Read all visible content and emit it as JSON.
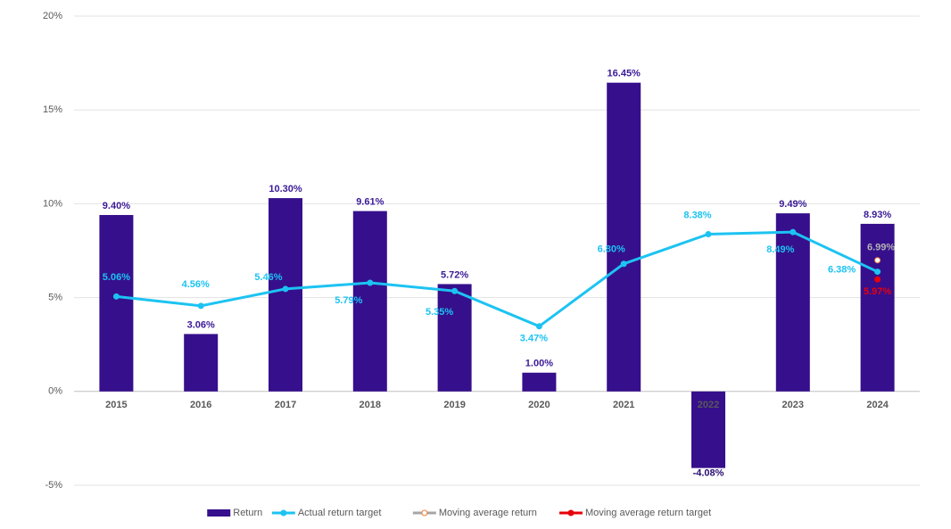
{
  "chart_data": {
    "type": "bar",
    "categories": [
      "2015",
      "2016",
      "2017",
      "2018",
      "2019",
      "2020",
      "2021",
      "2022",
      "2023",
      "2024"
    ],
    "series": [
      {
        "name": "Return",
        "type": "bar",
        "color": "#360f8c",
        "values": [
          9.4,
          3.06,
          10.3,
          9.61,
          5.72,
          1.0,
          16.45,
          -4.08,
          9.49,
          8.93
        ],
        "value_labels": [
          "9.40%",
          "3.06%",
          "10.30%",
          "9.61%",
          "5.72%",
          "1.00%",
          "16.45%",
          "-4.08%",
          "9.49%",
          "8.93%"
        ]
      },
      {
        "name": "Actual return target",
        "type": "line",
        "color": "#1cc3f2",
        "values": [
          5.06,
          4.56,
          5.46,
          5.79,
          5.35,
          3.47,
          6.8,
          8.38,
          8.49,
          6.38
        ],
        "value_labels": [
          "5.06%",
          "4.56%",
          "5.46%",
          "5.79%",
          "5.35%",
          "3.47%",
          "6.80%",
          "8.38%",
          "8.49%",
          "6.38%"
        ]
      },
      {
        "name": "Moving average return",
        "type": "line",
        "color": "#a6a6a6",
        "marker_edge": "#ed7d31",
        "label_color": "#b3b3b3",
        "values": [
          null,
          null,
          null,
          null,
          null,
          null,
          null,
          null,
          null,
          6.99
        ],
        "value_labels": [
          null,
          null,
          null,
          null,
          null,
          null,
          null,
          null,
          null,
          "6.99%"
        ]
      },
      {
        "name": "Moving average return target",
        "type": "line",
        "color": "#e8000b",
        "values": [
          null,
          null,
          null,
          null,
          null,
          null,
          null,
          null,
          null,
          5.97
        ],
        "value_labels": [
          null,
          null,
          null,
          null,
          null,
          null,
          null,
          null,
          null,
          "5.97%"
        ]
      }
    ],
    "ylim": [
      -5,
      20
    ],
    "yticks": [
      {
        "value": -5,
        "label": "-5%"
      },
      {
        "value": 0,
        "label": "0%"
      },
      {
        "value": 5,
        "label": "5%"
      },
      {
        "value": 10,
        "label": "10%"
      },
      {
        "value": 15,
        "label": "15%"
      },
      {
        "value": 20,
        "label": "20%"
      }
    ],
    "grid": true,
    "legend": "bottom"
  }
}
